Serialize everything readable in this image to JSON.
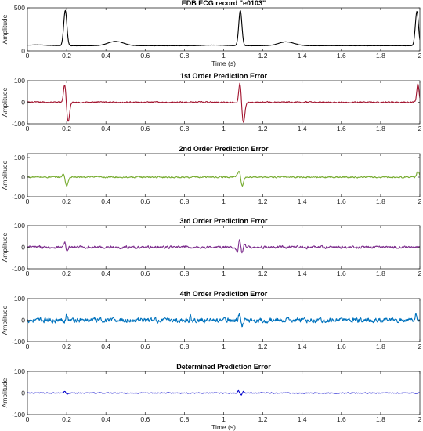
{
  "chart_data": [
    {
      "type": "line",
      "title": "EDB ECG record \"e0103\"",
      "xlabel": "Time (s)",
      "ylabel": "Amplitude",
      "xlim": [
        0,
        2
      ],
      "ylim": [
        0,
        500
      ],
      "xticks": [
        "0",
        "0.2",
        "0.4",
        "0.6",
        "0.8",
        "1",
        "1.2",
        "1.4",
        "1.6",
        "1.8",
        "2"
      ],
      "yticks": [
        "0",
        "500"
      ],
      "series": [
        {
          "color": "#000000",
          "baseline": 60,
          "noise": 1,
          "waves": [
            {
              "t": 0.05,
              "amp": 10,
              "width": 0.05
            },
            {
              "t": 0.193,
              "amp": 410,
              "width": 0.008
            },
            {
              "t": 0.45,
              "amp": 50,
              "width": 0.04
            },
            {
              "t": 0.95,
              "amp": 8,
              "width": 0.05
            },
            {
              "t": 1.085,
              "amp": 410,
              "width": 0.008
            },
            {
              "t": 1.32,
              "amp": 45,
              "width": 0.04
            },
            {
              "t": 1.985,
              "amp": 400,
              "width": 0.008
            }
          ]
        }
      ]
    },
    {
      "type": "line",
      "title": "1st Order Prediction Error",
      "xlabel": "",
      "ylabel": "Amplitude",
      "xlim": [
        0,
        2
      ],
      "ylim": [
        -100,
        100
      ],
      "xticks": [
        "0",
        "0.2",
        "0.4",
        "0.6",
        "0.8",
        "1",
        "1.2",
        "1.4",
        "1.6",
        "1.8",
        "2"
      ],
      "yticks": [
        "-100",
        "0",
        "100"
      ],
      "series": [
        {
          "color": "#a2142f",
          "baseline": 0,
          "noise": 2.5,
          "waves": [
            {
              "t": 0.19,
              "amp": 85,
              "width": 0.006
            },
            {
              "t": 0.208,
              "amp": -90,
              "width": 0.007
            },
            {
              "t": 1.083,
              "amp": 90,
              "width": 0.006
            },
            {
              "t": 1.101,
              "amp": -95,
              "width": 0.007
            },
            {
              "t": 1.99,
              "amp": 85,
              "width": 0.006
            }
          ]
        }
      ]
    },
    {
      "type": "line",
      "title": "2nd Order Prediction Error",
      "xlabel": "",
      "ylabel": "Amplitude",
      "xlim": [
        0,
        2
      ],
      "ylim": [
        -100,
        120
      ],
      "xticks": [
        "0",
        "0.2",
        "0.4",
        "0.6",
        "0.8",
        "1",
        "1.2",
        "1.4",
        "1.6",
        "1.8",
        "2"
      ],
      "yticks": [
        "-100",
        "0",
        "100"
      ],
      "series": [
        {
          "color": "#77ac30",
          "baseline": 0,
          "noise": 3,
          "waves": [
            {
              "t": 0.185,
              "amp": 18,
              "width": 0.006
            },
            {
              "t": 0.2,
              "amp": -45,
              "width": 0.007
            },
            {
              "t": 1.07,
              "amp": 12,
              "width": 0.006
            },
            {
              "t": 1.082,
              "amp": 35,
              "width": 0.006
            },
            {
              "t": 1.094,
              "amp": -50,
              "width": 0.007
            },
            {
              "t": 1.99,
              "amp": 30,
              "width": 0.006
            }
          ]
        }
      ]
    },
    {
      "type": "line",
      "title": "3rd Order Prediction Error",
      "xlabel": "",
      "ylabel": "Amplitude",
      "xlim": [
        0,
        2
      ],
      "ylim": [
        -100,
        100
      ],
      "xticks": [
        "0",
        "0.2",
        "0.4",
        "0.6",
        "0.8",
        "1",
        "1.2",
        "1.4",
        "1.6",
        "1.8",
        "2"
      ],
      "yticks": [
        "-100",
        "0",
        "100"
      ],
      "series": [
        {
          "color": "#7e2f8e",
          "baseline": 0,
          "noise": 5,
          "waves": [
            {
              "t": 0.19,
              "amp": 22,
              "width": 0.005
            },
            {
              "t": 0.202,
              "amp": -22,
              "width": 0.005
            },
            {
              "t": 1.07,
              "amp": -20,
              "width": 0.005
            },
            {
              "t": 1.082,
              "amp": 35,
              "width": 0.005
            },
            {
              "t": 1.094,
              "amp": -30,
              "width": 0.005
            },
            {
              "t": 1.105,
              "amp": 15,
              "width": 0.005
            }
          ]
        }
      ]
    },
    {
      "type": "line",
      "title": "4th Order Prediction Error",
      "xlabel": "",
      "ylabel": "Amplitude",
      "xlim": [
        0,
        2
      ],
      "ylim": [
        -100,
        100
      ],
      "xticks": [
        "0",
        "0.2",
        "0.4",
        "0.6",
        "0.8",
        "1",
        "1.2",
        "1.4",
        "1.6",
        "1.8",
        "2"
      ],
      "yticks": [
        "-100",
        "0",
        "100"
      ],
      "series": [
        {
          "color": "#0072bd",
          "baseline": 0,
          "noise": 9,
          "waves": [
            {
              "t": 0.2,
              "amp": 28,
              "width": 0.004
            },
            {
              "t": 1.08,
              "amp": 30,
              "width": 0.004
            },
            {
              "t": 1.095,
              "amp": -30,
              "width": 0.004
            },
            {
              "t": 0.83,
              "amp": 22,
              "width": 0.003
            },
            {
              "t": 1.98,
              "amp": 25,
              "width": 0.004
            }
          ]
        }
      ]
    },
    {
      "type": "line",
      "title": "Determined Prediction Error",
      "xlabel": "Time (s)",
      "ylabel": "Amplitude",
      "xlim": [
        0,
        2
      ],
      "ylim": [
        -100,
        100
      ],
      "xticks": [
        "0",
        "0.2",
        "0.4",
        "0.6",
        "0.8",
        "1",
        "1.2",
        "1.4",
        "1.6",
        "1.8",
        "2"
      ],
      "yticks": [
        "-100",
        "0",
        "100"
      ],
      "series": [
        {
          "color": "#0000cc",
          "baseline": 0,
          "noise": 1.5,
          "waves": [
            {
              "t": 0.19,
              "amp": 8,
              "width": 0.004
            },
            {
              "t": 0.205,
              "amp": -6,
              "width": 0.004
            },
            {
              "t": 1.075,
              "amp": 10,
              "width": 0.004
            },
            {
              "t": 1.09,
              "amp": -10,
              "width": 0.004
            },
            {
              "t": 1.1,
              "amp": 7,
              "width": 0.004
            }
          ]
        }
      ]
    }
  ]
}
